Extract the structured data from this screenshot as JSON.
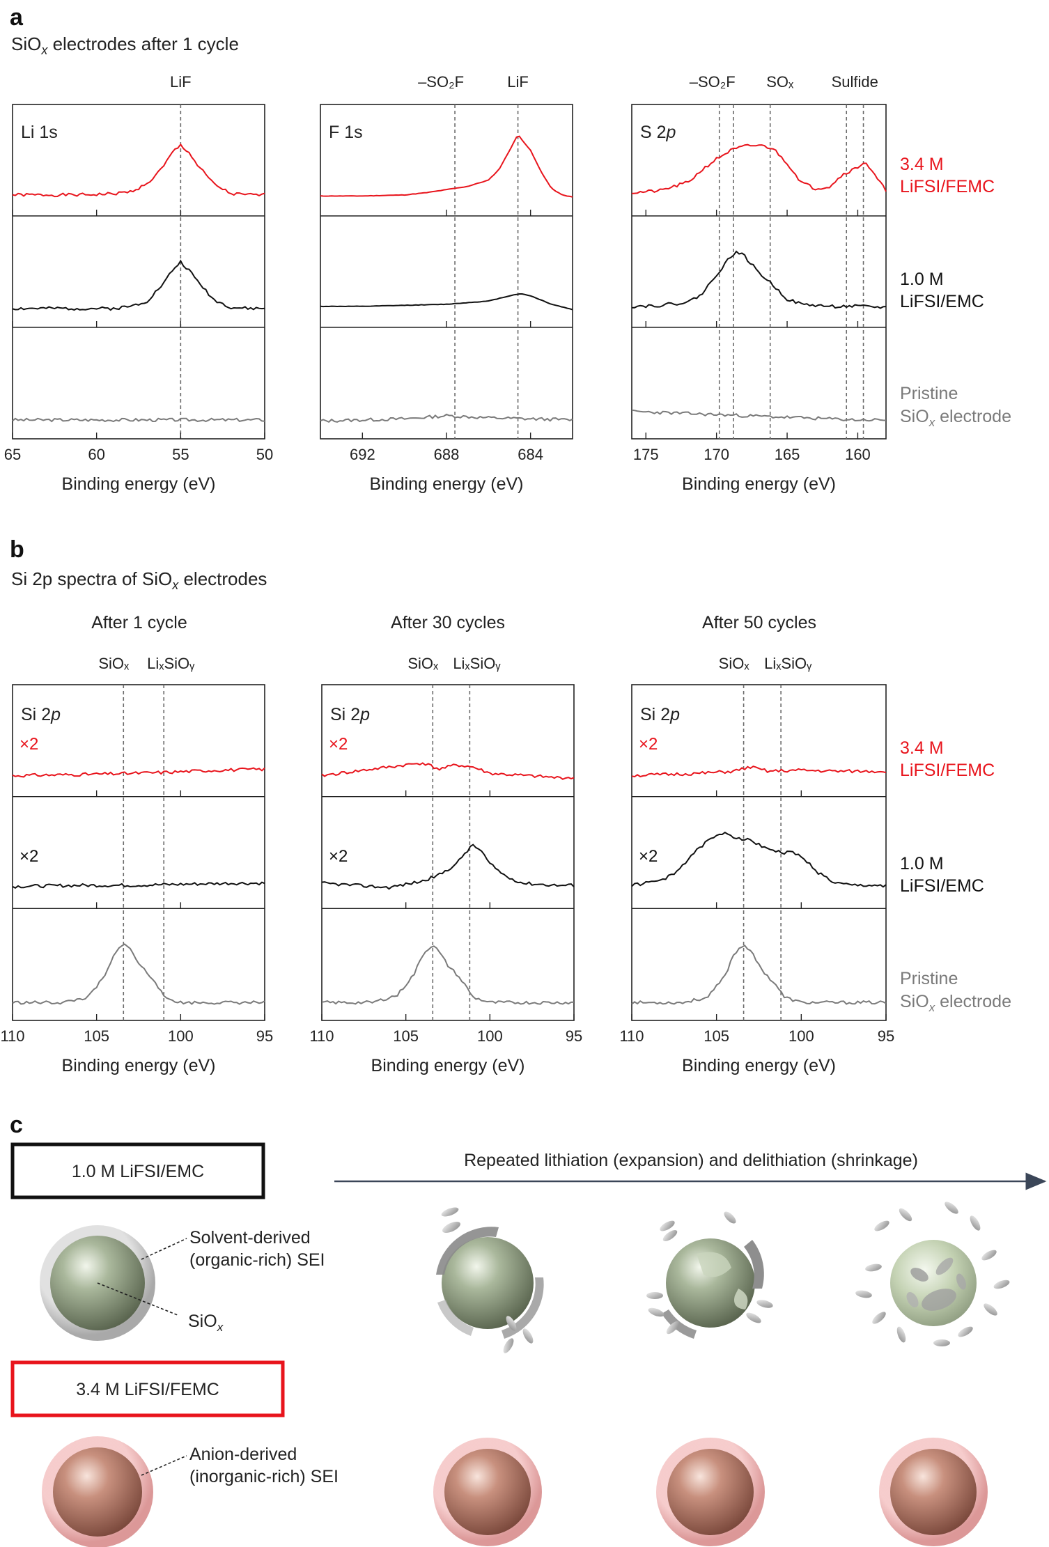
{
  "colors": {
    "red": "#e8141c",
    "black": "#111111",
    "gray": "#7a7a7a",
    "dashed": "#6b6b6b",
    "arrow": "#3b4658"
  },
  "panel_a": {
    "label": "a",
    "title_main": "SiO",
    "title_sub": "x",
    "title_rest": " electrodes after 1 cycle"
  },
  "panel_b": {
    "label": "b",
    "title_main": "Si 2p spectra of SiO",
    "title_sub": "x",
    "title_rest": " electrodes"
  },
  "panel_c": {
    "label": "c",
    "arrow_text": "Repeated lithiation (expansion) and delithiation (shrinkage)",
    "box_top": "1.0 M LiFSI/EMC",
    "box_bottom": "3.4 M LiFSI/FEMC",
    "callout_organic_1": "Solvent-derived",
    "callout_organic_2": "(organic-rich) SEI",
    "callout_siox_main": "SiO",
    "callout_siox_sub": "x",
    "callout_anion_1": "Anion-derived",
    "callout_anion_2": "(inorganic-rich) SEI"
  },
  "legend": {
    "red_1": "3.4 M",
    "red_2": "LiFSI/FEMC",
    "black_1": "1.0 M",
    "black_2": "LiFSI/EMC",
    "gray_1": "Pristine",
    "gray_2_main": "SiO",
    "gray_2_sub": "x",
    "gray_2_rest": " electrode"
  },
  "chart_data": [
    {
      "type": "line",
      "panel": "a",
      "name": "Li 1s",
      "plot_label": "Li 1s",
      "xlabel": "Binding energy (eV)",
      "xlim": [
        65,
        50
      ],
      "x_reversed": true,
      "xticks": [
        65,
        60,
        55,
        50
      ],
      "minor_ticks": [
        65,
        60,
        55
      ],
      "peak_markers": [
        {
          "x": 55.0,
          "label": "LiF"
        }
      ],
      "series": [
        {
          "name": "3.4 M LiFSI/FEMC",
          "color": "red",
          "x": [
            65,
            63,
            61,
            59,
            58,
            57,
            56,
            55.5,
            55,
            54.5,
            54,
            53,
            52,
            51,
            50
          ],
          "y": [
            0.08,
            0.08,
            0.08,
            0.09,
            0.11,
            0.18,
            0.35,
            0.48,
            0.55,
            0.48,
            0.36,
            0.18,
            0.09,
            0.08,
            0.08
          ]
        },
        {
          "name": "1.0 M LiFSI/EMC",
          "color": "black",
          "x": [
            65,
            63,
            61,
            59,
            58,
            57,
            56,
            55.5,
            55,
            54.5,
            54,
            53,
            52,
            51,
            50
          ],
          "y": [
            0.06,
            0.06,
            0.06,
            0.06,
            0.08,
            0.13,
            0.3,
            0.42,
            0.5,
            0.42,
            0.32,
            0.14,
            0.07,
            0.06,
            0.06
          ]
        },
        {
          "name": "Pristine SiOx electrode",
          "color": "gray",
          "x": [
            65,
            60,
            55,
            50
          ],
          "y": [
            0.06,
            0.06,
            0.06,
            0.06
          ]
        }
      ]
    },
    {
      "type": "line",
      "panel": "a",
      "name": "F 1s",
      "plot_label": "F 1s",
      "xlabel": "Binding energy (eV)",
      "xlim": [
        694,
        682
      ],
      "x_reversed": true,
      "xticks": [
        692,
        688,
        684
      ],
      "minor_ticks": [
        688,
        684
      ],
      "peak_markers": [
        {
          "x": 687.6,
          "label": "–SO₂F"
        },
        {
          "x": 684.6,
          "label": "LiF"
        }
      ],
      "series": [
        {
          "name": "3.4 M LiFSI/FEMC",
          "color": "red",
          "x": [
            694,
            692,
            690,
            689,
            688,
            687,
            686,
            685.5,
            685,
            684.6,
            684,
            683.5,
            683,
            682.5,
            682
          ],
          "y": [
            0.07,
            0.07,
            0.08,
            0.1,
            0.13,
            0.16,
            0.22,
            0.32,
            0.5,
            0.65,
            0.5,
            0.3,
            0.14,
            0.08,
            0.06
          ]
        },
        {
          "name": "1.0 M LiFSI/EMC",
          "color": "black",
          "x": [
            694,
            692,
            690,
            688,
            686,
            685,
            684.5,
            684,
            683,
            682
          ],
          "y": [
            0.08,
            0.08,
            0.09,
            0.1,
            0.13,
            0.18,
            0.2,
            0.18,
            0.1,
            0.05
          ]
        },
        {
          "name": "Pristine SiOx electrode",
          "color": "gray",
          "x": [
            694,
            690,
            688,
            686,
            684,
            682
          ],
          "y": [
            0.05,
            0.07,
            0.1,
            0.08,
            0.07,
            0.06
          ]
        }
      ]
    },
    {
      "type": "line",
      "panel": "a",
      "name": "S 2p",
      "plot_label": "S 2p",
      "xlabel": "Binding energy (eV)",
      "xlim": [
        176,
        158
      ],
      "x_reversed": true,
      "xticks": [
        175,
        170,
        165,
        160
      ],
      "minor_ticks": [
        175,
        170,
        165,
        160
      ],
      "peak_markers": [
        {
          "x": 169.8,
          "label": "–SO₂F"
        },
        {
          "x": 168.8,
          "label": ""
        },
        {
          "x": 166.2,
          "label": "SOₓ"
        },
        {
          "x": 160.8,
          "label": "Sulfide"
        },
        {
          "x": 159.6,
          "label": ""
        }
      ],
      "series": [
        {
          "name": "3.4 M LiFSI/FEMC",
          "color": "red",
          "x": [
            176,
            174,
            172,
            171,
            170,
            169,
            168,
            167,
            166,
            165,
            164,
            163,
            162,
            161,
            160,
            159.5,
            159,
            158
          ],
          "y": [
            0.1,
            0.12,
            0.2,
            0.32,
            0.42,
            0.5,
            0.54,
            0.55,
            0.52,
            0.38,
            0.2,
            0.14,
            0.16,
            0.28,
            0.34,
            0.4,
            0.3,
            0.12
          ]
        },
        {
          "name": "1.0 M LiFSI/EMC",
          "color": "black",
          "x": [
            176,
            174,
            172,
            171,
            170,
            169,
            168.5,
            168,
            167,
            166,
            165,
            164,
            162,
            160,
            158
          ],
          "y": [
            0.08,
            0.09,
            0.12,
            0.2,
            0.38,
            0.55,
            0.6,
            0.55,
            0.4,
            0.28,
            0.15,
            0.1,
            0.08,
            0.08,
            0.07
          ]
        },
        {
          "name": "Pristine SiOx electrode",
          "color": "gray",
          "x": [
            176,
            172,
            168,
            164,
            160,
            158
          ],
          "y": [
            0.14,
            0.12,
            0.1,
            0.08,
            0.06,
            0.06
          ]
        }
      ]
    },
    {
      "type": "line",
      "panel": "b",
      "name": "Si 2p after 1 cycle",
      "header": "After 1 cycle",
      "plot_label": "Si 2p",
      "xlabel": "Binding energy (eV)",
      "xlim": [
        110,
        95
      ],
      "x_reversed": true,
      "xticks": [
        110,
        105,
        100,
        95
      ],
      "minor_ticks": [
        105,
        100
      ],
      "peak_markers": [
        {
          "x": 103.4,
          "label": "SiOₓ"
        },
        {
          "x": 101.0,
          "label": "LiₓSiOᵧ"
        }
      ],
      "multipliers": {
        "red": "×2",
        "black": "×2"
      },
      "series": [
        {
          "name": "3.4 M LiFSI/FEMC",
          "color": "red",
          "x": [
            110,
            106,
            103,
            101,
            98,
            95
          ],
          "y": [
            0.08,
            0.09,
            0.1,
            0.11,
            0.13,
            0.14
          ]
        },
        {
          "name": "1.0 M LiFSI/EMC",
          "color": "black",
          "x": [
            110,
            106,
            103,
            100,
            97,
            95
          ],
          "y": [
            0.09,
            0.1,
            0.1,
            0.11,
            0.12,
            0.12
          ]
        },
        {
          "name": "Pristine SiOx electrode",
          "color": "gray",
          "x": [
            110,
            107,
            105.5,
            104.5,
            104,
            103.4,
            103,
            102.5,
            102,
            101.5,
            101,
            100,
            98,
            95
          ],
          "y": [
            0.05,
            0.05,
            0.1,
            0.3,
            0.48,
            0.62,
            0.55,
            0.42,
            0.33,
            0.25,
            0.1,
            0.05,
            0.05,
            0.05
          ]
        }
      ]
    },
    {
      "type": "line",
      "panel": "b",
      "name": "Si 2p after 30 cycles",
      "header": "After 30 cycles",
      "plot_label": "Si 2p",
      "xlabel": "Binding energy (eV)",
      "xlim": [
        110,
        95
      ],
      "x_reversed": true,
      "xticks": [
        110,
        105,
        100,
        95
      ],
      "minor_ticks": [
        105,
        100
      ],
      "peak_markers": [
        {
          "x": 103.4,
          "label": "SiOₓ"
        },
        {
          "x": 101.2,
          "label": "LiₓSiOᵧ"
        }
      ],
      "multipliers": {
        "red": "×2",
        "black": "×2"
      },
      "series": [
        {
          "name": "3.4 M LiFSI/FEMC",
          "color": "red",
          "x": [
            110,
            108,
            106,
            105,
            104,
            103,
            102,
            101,
            100,
            98,
            96,
            95
          ],
          "y": [
            0.08,
            0.12,
            0.16,
            0.18,
            0.2,
            0.14,
            0.18,
            0.16,
            0.1,
            0.08,
            0.06,
            0.06
          ]
        },
        {
          "name": "1.0 M LiFSI/EMC",
          "color": "black",
          "x": [
            110,
            108,
            106,
            104,
            103,
            102,
            101.5,
            101,
            100.5,
            100,
            99,
            98,
            96,
            95
          ],
          "y": [
            0.12,
            0.1,
            0.08,
            0.14,
            0.2,
            0.3,
            0.4,
            0.48,
            0.42,
            0.3,
            0.18,
            0.12,
            0.1,
            0.1
          ]
        },
        {
          "name": "Pristine SiOx electrode",
          "color": "gray",
          "x": [
            110,
            107,
            105.5,
            104.5,
            104,
            103.4,
            103,
            102.5,
            102,
            101.5,
            101,
            100,
            98,
            95
          ],
          "y": [
            0.05,
            0.05,
            0.12,
            0.32,
            0.5,
            0.6,
            0.52,
            0.4,
            0.32,
            0.22,
            0.1,
            0.05,
            0.05,
            0.05
          ]
        }
      ]
    },
    {
      "type": "line",
      "panel": "b",
      "name": "Si 2p after 50 cycles",
      "header": "After 50 cycles",
      "plot_label": "Si 2p",
      "xlabel": "Binding energy (eV)",
      "xlim": [
        110,
        95
      ],
      "x_reversed": true,
      "xticks": [
        110,
        105,
        100,
        95
      ],
      "minor_ticks": [
        105,
        100
      ],
      "peak_markers": [
        {
          "x": 103.4,
          "label": "SiOₓ"
        },
        {
          "x": 101.2,
          "label": "LiₓSiOᵧ"
        }
      ],
      "multipliers": {
        "red": "×2",
        "black": "×2"
      },
      "series": [
        {
          "name": "3.4 M LiFSI/FEMC",
          "color": "red",
          "x": [
            110,
            106,
            104,
            103,
            102,
            100,
            98,
            95
          ],
          "y": [
            0.08,
            0.1,
            0.12,
            0.16,
            0.12,
            0.13,
            0.12,
            0.12
          ]
        },
        {
          "name": "1.0 M LiFSI/EMC",
          "color": "black",
          "x": [
            110,
            108.5,
            107.5,
            106.5,
            105.5,
            104.5,
            104,
            103,
            102,
            101,
            100.5,
            99.5,
            99,
            98,
            97,
            95
          ],
          "y": [
            0.1,
            0.14,
            0.2,
            0.38,
            0.52,
            0.6,
            0.56,
            0.52,
            0.45,
            0.4,
            0.42,
            0.3,
            0.22,
            0.12,
            0.1,
            0.1
          ]
        },
        {
          "name": "Pristine SiOx electrode",
          "color": "gray",
          "x": [
            110,
            107,
            105.5,
            104.5,
            104,
            103.4,
            103,
            102.5,
            102,
            101.5,
            101,
            100,
            98,
            95
          ],
          "y": [
            0.05,
            0.05,
            0.1,
            0.3,
            0.5,
            0.6,
            0.54,
            0.4,
            0.3,
            0.22,
            0.1,
            0.05,
            0.05,
            0.05
          ]
        }
      ]
    }
  ]
}
